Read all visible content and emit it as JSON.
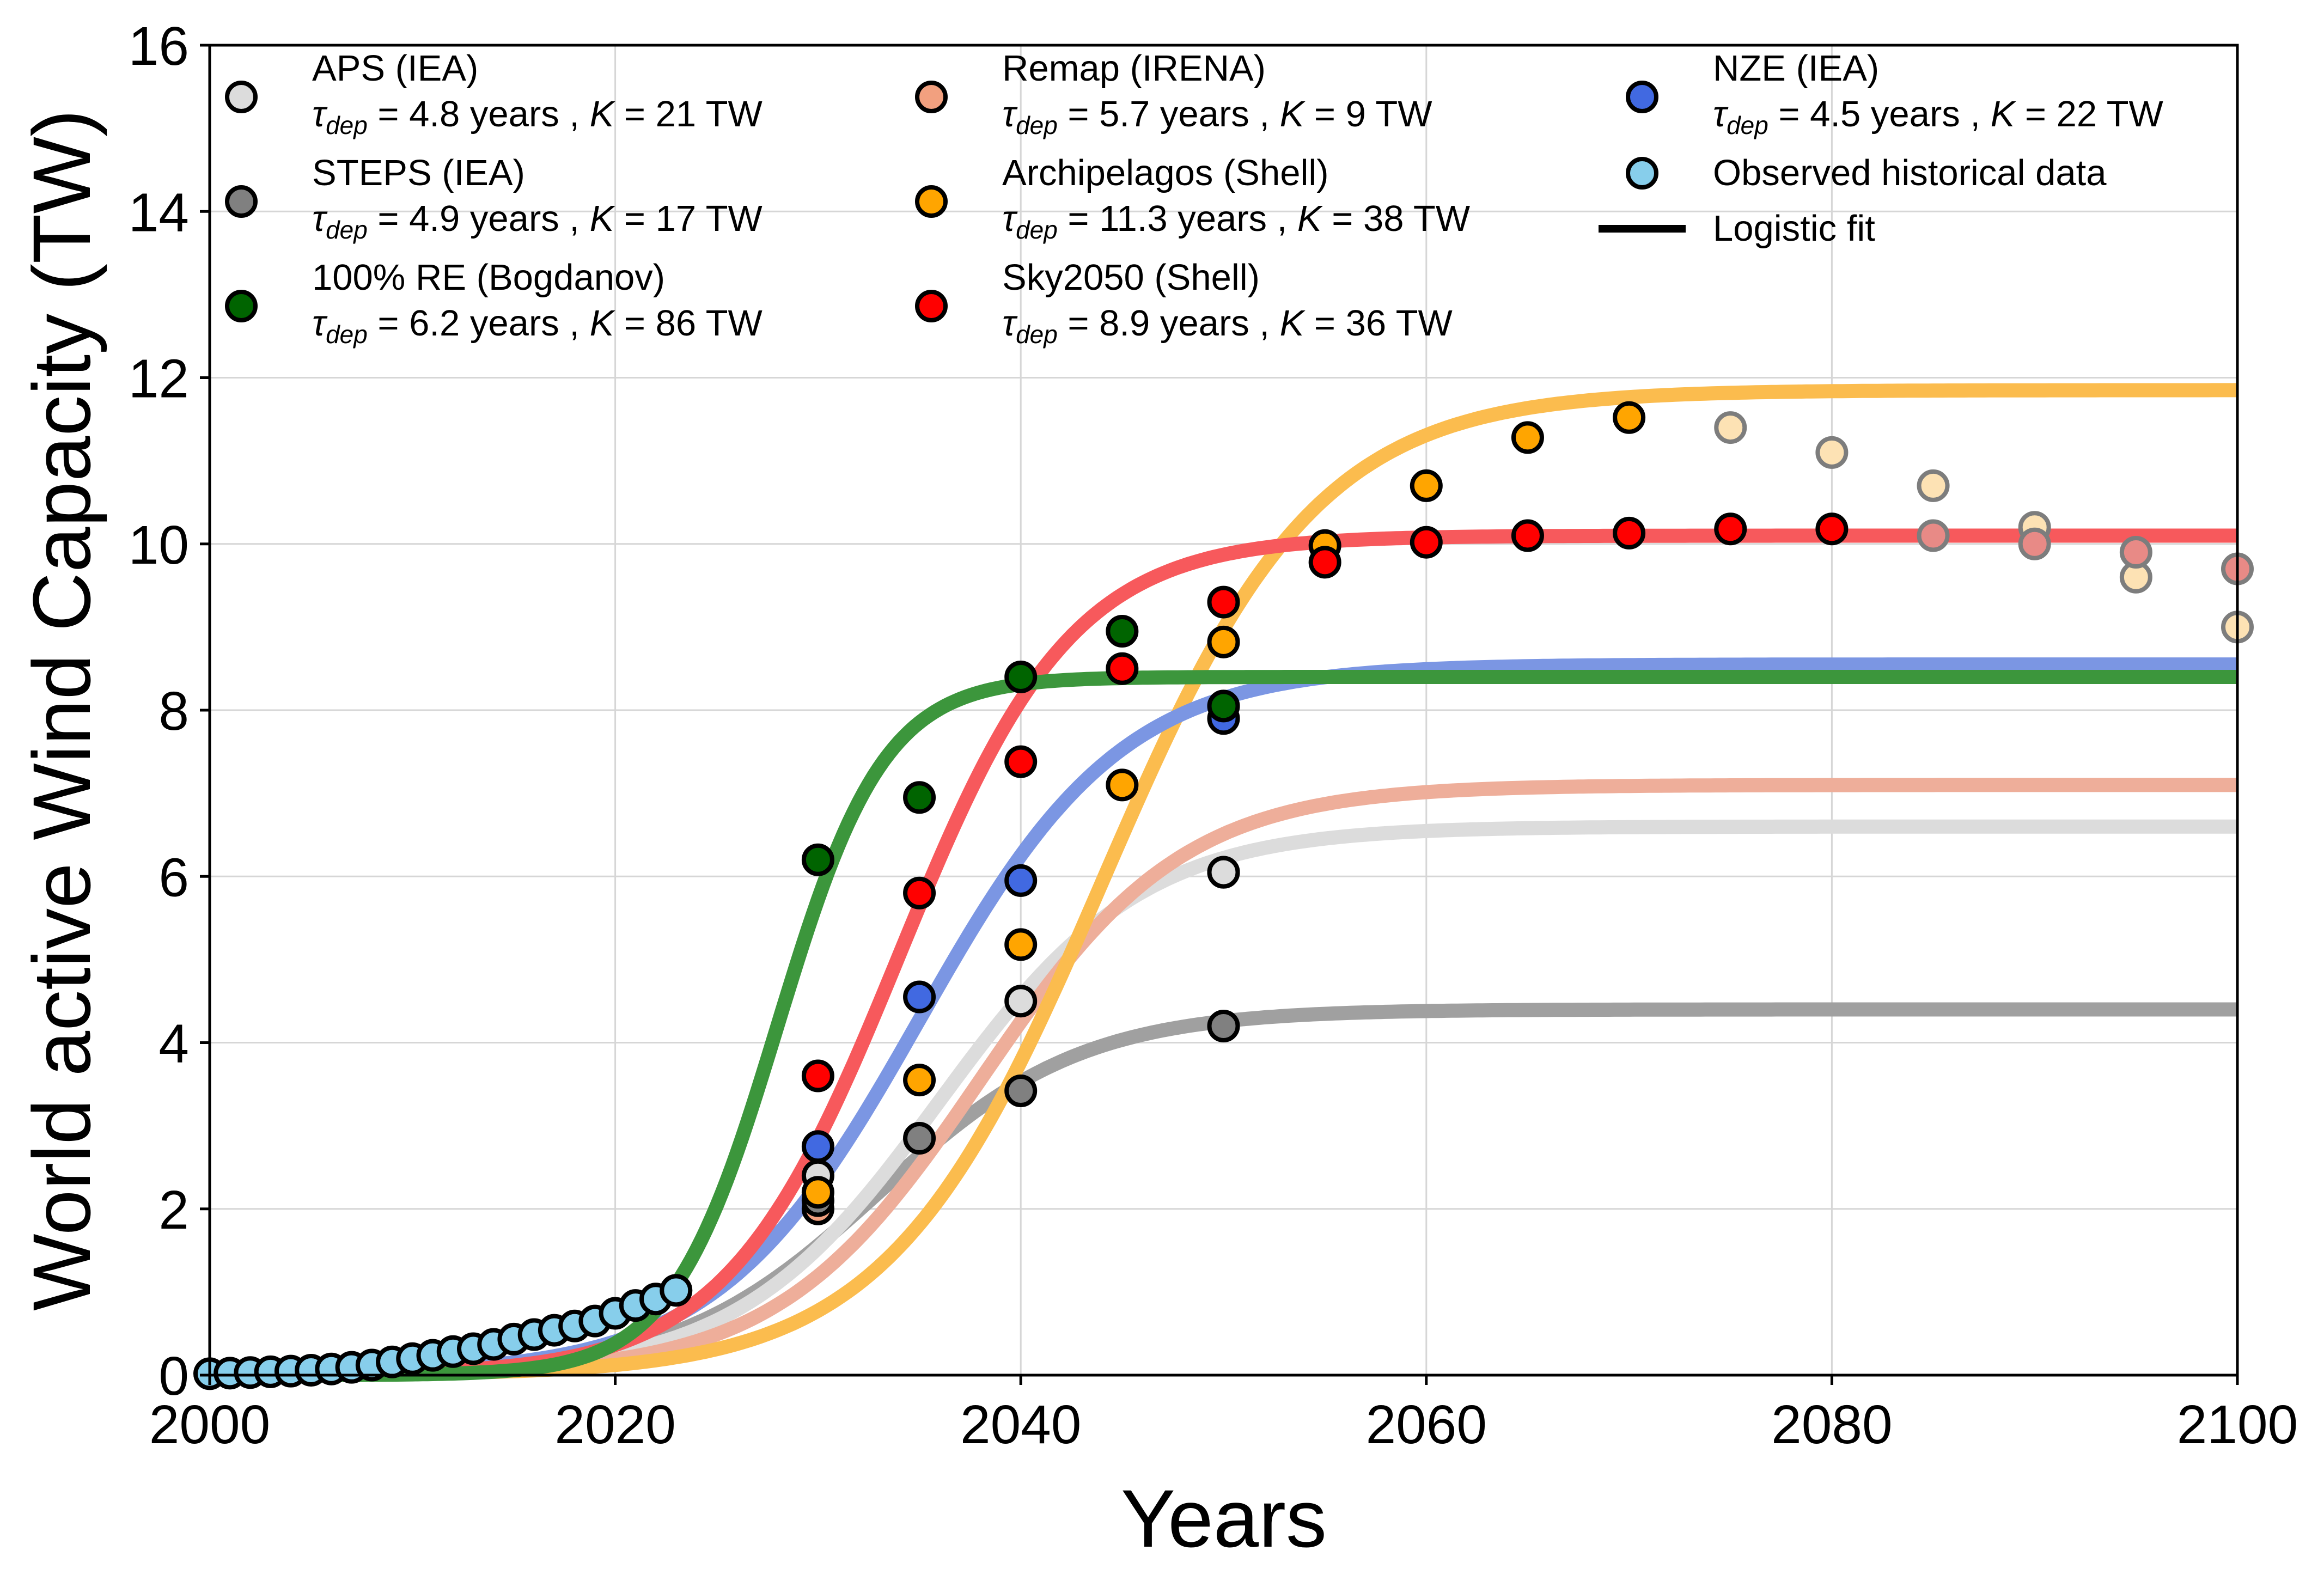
{
  "chart_data": {
    "type": "line",
    "xlabel": "Years",
    "ylabel": "World active Wind Capacity (TW)",
    "xlim": [
      2000,
      2100
    ],
    "ylim": [
      0,
      16
    ],
    "xticks": [
      2000,
      2020,
      2040,
      2060,
      2080,
      2100
    ],
    "xtick_labels": [
      "2000",
      "2020",
      "2040",
      "2060",
      "2080",
      "2100"
    ],
    "yticks": [
      0,
      2,
      4,
      6,
      8,
      10,
      12,
      14,
      16
    ],
    "ytick_labels": [
      "0",
      "2",
      "4",
      "6",
      "8",
      "10",
      "12",
      "14",
      "16"
    ],
    "grid": true,
    "legend_position": "top",
    "series": [
      {
        "name": "APS (IEA)",
        "param_line": "τ_dep = 4.8 years , K = 21 TW",
        "tau": "4.8",
        "K": "21",
        "marker_color": "#dcdcdc",
        "line_color": "#dcdcdc",
        "fit_plateau": 6.6,
        "fit_midpoint": 2036.0,
        "fit_rate": 0.2,
        "points": [
          [
            2030,
            2.4
          ],
          [
            2040,
            4.5
          ],
          [
            2050,
            6.05
          ]
        ],
        "faded_points": [
          [
            2075,
            11.4
          ],
          [
            2080,
            11.1
          ],
          [
            2085,
            10.7
          ],
          [
            2090,
            10.2
          ],
          [
            2095,
            9.6
          ],
          [
            2100,
            9.0
          ]
        ]
      },
      {
        "name": "STEPS (IEA)",
        "param_line": "τ_dep = 4.9 years , K = 17 TW",
        "tau": "4.9",
        "K": "17",
        "marker_color": "#808080",
        "line_color": "#a0a0a0",
        "fit_plateau": 4.4,
        "fit_midpoint": 2033.0,
        "fit_rate": 0.2,
        "points": [
          [
            2030,
            2.1
          ],
          [
            2035,
            2.85
          ],
          [
            2040,
            3.42
          ],
          [
            2050,
            4.2
          ]
        ],
        "faded_points": []
      },
      {
        "name": "100% RE (Bogdanov)",
        "param_line": "τ_dep = 6.2 years , K = 86 TW",
        "tau": "6.2",
        "K": "86",
        "marker_color": "#006400",
        "line_color": "#3c963c",
        "fit_plateau": 8.4,
        "fit_midpoint": 2028.0,
        "fit_rate": 0.38,
        "points": [
          [
            2030,
            6.2
          ],
          [
            2035,
            6.95
          ],
          [
            2040,
            8.4
          ],
          [
            2045,
            8.95
          ],
          [
            2050,
            8.05
          ]
        ],
        "faded_points": []
      },
      {
        "name": "Remap (IRENA)",
        "param_line": "τ_dep = 5.7 years , K = 9 TW",
        "tau": "5.7",
        "K": "9",
        "marker_color": "#f2a07f",
        "line_color": "#eeae9a",
        "fit_plateau": 7.1,
        "fit_midpoint": 2038.0,
        "fit_rate": 0.2,
        "points": [
          [
            2030,
            2.0
          ],
          [
            2050,
            6.05
          ]
        ],
        "faded_points": [
          [
            2085,
            10.1
          ],
          [
            2090,
            10.0
          ],
          [
            2095,
            9.9
          ],
          [
            2100,
            9.7
          ]
        ]
      },
      {
        "name": "Archipelagos (Shell)",
        "param_line": "τ_dep = 11.3 years , K = 38 TW",
        "tau": "11.3",
        "K": "38",
        "marker_color": "#ffa500",
        "line_color": "#fbbc4e",
        "fit_plateau": 11.85,
        "fit_midpoint": 2044.0,
        "fit_rate": 0.19,
        "points": [
          [
            2030,
            2.2
          ],
          [
            2035,
            3.55
          ],
          [
            2040,
            5.18
          ],
          [
            2045,
            7.1
          ],
          [
            2050,
            8.82
          ],
          [
            2055,
            9.98
          ],
          [
            2060,
            10.7
          ],
          [
            2065,
            11.28
          ],
          [
            2070,
            11.52
          ]
        ],
        "faded_points": []
      },
      {
        "name": "Sky2050 (Shell)",
        "param_line": "τ_dep = 8.9 years , K = 36 TW",
        "tau": "8.9",
        "K": "36",
        "marker_color": "#ff0000",
        "line_color": "#f7595c",
        "fit_plateau": 10.1,
        "fit_midpoint": 2034.0,
        "fit_rate": 0.235,
        "points": [
          [
            2030,
            3.6
          ],
          [
            2035,
            5.8
          ],
          [
            2040,
            7.38
          ],
          [
            2045,
            8.5
          ],
          [
            2050,
            9.3
          ],
          [
            2055,
            9.78
          ],
          [
            2060,
            10.02
          ],
          [
            2065,
            10.1
          ],
          [
            2070,
            10.13
          ],
          [
            2075,
            10.18
          ],
          [
            2080,
            10.18
          ]
        ],
        "faded_points": []
      },
      {
        "name": "NZE (IEA)",
        "param_line": "τ_dep = 4.5 years , K = 22 TW",
        "tau": "4.5",
        "K": "22",
        "marker_color": "#4169e1",
        "line_color": "#7b96e3",
        "fit_plateau": 8.55,
        "fit_midpoint": 2035.0,
        "fit_rate": 0.2,
        "points": [
          [
            2030,
            2.75
          ],
          [
            2035,
            4.55
          ],
          [
            2040,
            5.95
          ],
          [
            2050,
            7.9
          ]
        ],
        "faded_points": []
      }
    ],
    "historical": {
      "name": "Observed historical data",
      "marker_color": "#87ceeb",
      "x": [
        2000,
        2001,
        2002,
        2003,
        2004,
        2005,
        2006,
        2007,
        2008,
        2009,
        2010,
        2011,
        2012,
        2013,
        2014,
        2015,
        2016,
        2017,
        2018,
        2019,
        2020,
        2021,
        2022,
        2023
      ],
      "y": [
        0.017,
        0.024,
        0.031,
        0.04,
        0.048,
        0.059,
        0.074,
        0.094,
        0.121,
        0.159,
        0.198,
        0.238,
        0.283,
        0.318,
        0.37,
        0.433,
        0.488,
        0.54,
        0.591,
        0.651,
        0.744,
        0.838,
        0.916,
        1.02
      ]
    },
    "fit_legend_label": "Logistic fit"
  }
}
